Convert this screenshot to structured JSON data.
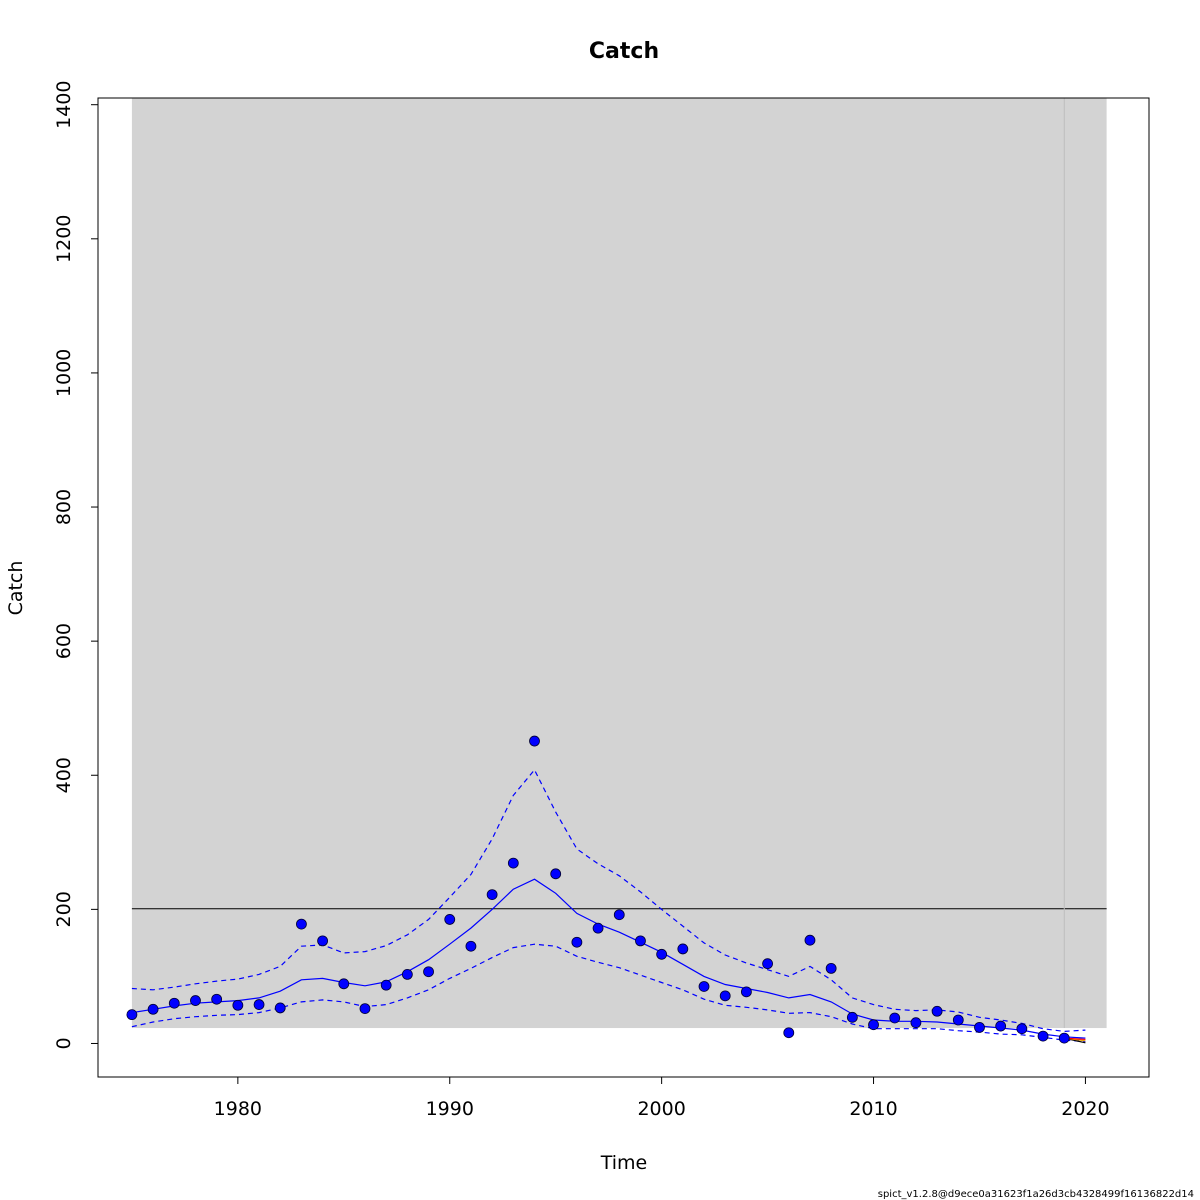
{
  "chart_data": {
    "type": "scatter",
    "title": "Catch",
    "xlabel": "Time",
    "ylabel": "Catch",
    "footnote": "spict_v1.2.8@d9ece0a31623f1a26d3cb4328499f16136822d14",
    "xlim": [
      1973.4,
      2023.0
    ],
    "ylim": [
      -50,
      1410
    ],
    "xticks": [
      1980,
      1990,
      2000,
      2010,
      2020
    ],
    "yticks": [
      0,
      200,
      400,
      600,
      800,
      1000,
      1200,
      1400
    ],
    "msy_region": {
      "x": [
        1975,
        2021
      ],
      "y": [
        23,
        1410
      ]
    },
    "msy_line": 201,
    "vertical_line": 2019,
    "colors": {
      "points": "#0000ff",
      "fit": "#0000ff",
      "ci": "#0000ff",
      "region": "#d3d3d3",
      "hline": "#000000",
      "vline": "#bdbdbd",
      "forecast": [
        "#000000",
        "#e69f00",
        "#ff0000"
      ]
    },
    "series": [
      {
        "type": "scatter",
        "x": [
          1975,
          1976,
          1977,
          1978,
          1979,
          1980,
          1981,
          1982,
          1983,
          1984,
          1985,
          1986,
          1987,
          1988,
          1989,
          1990,
          1991,
          1992,
          1993,
          1994,
          1995,
          1996,
          1997,
          1998,
          1999,
          2000,
          2001,
          2002,
          2003,
          2004,
          2005,
          2006,
          2007,
          2008,
          2009,
          2010,
          2011,
          2012,
          2013,
          2014,
          2015,
          2016,
          2017,
          2018,
          2019
        ],
        "values": [
          43,
          51,
          60,
          64,
          66,
          57,
          58,
          53,
          178,
          153,
          89,
          52,
          87,
          103,
          107,
          185,
          145,
          222,
          269,
          451,
          253,
          151,
          172,
          192,
          153,
          133,
          141,
          85,
          71,
          77,
          119,
          16,
          154,
          112,
          39,
          28,
          38,
          31,
          48,
          35,
          24,
          26,
          22,
          11,
          8
        ]
      },
      {
        "type": "line",
        "x": [
          1975,
          1976,
          1977,
          1978,
          1979,
          1980,
          1981,
          1982,
          1983,
          1984,
          1985,
          1986,
          1987,
          1988,
          1989,
          1990,
          1991,
          1992,
          1993,
          1994,
          1995,
          1996,
          1997,
          1998,
          1999,
          2000,
          2001,
          2002,
          2003,
          2004,
          2005,
          2006,
          2007,
          2008,
          2009,
          2010,
          2011,
          2012,
          2013,
          2014,
          2015,
          2016,
          2017,
          2018,
          2019,
          2020
        ],
        "values": [
          46,
          51,
          56,
          60,
          62,
          64,
          68,
          78,
          95,
          97,
          91,
          86,
          92,
          107,
          125,
          148,
          172,
          200,
          230,
          245,
          224,
          194,
          178,
          166,
          151,
          136,
          118,
          100,
          88,
          82,
          76,
          68,
          73,
          62,
          44,
          35,
          33,
          33,
          32,
          29,
          26,
          23,
          20,
          14,
          10,
          8
        ]
      },
      {
        "type": "line",
        "x": [
          1975,
          1976,
          1977,
          1978,
          1979,
          1980,
          1981,
          1982,
          1983,
          1984,
          1985,
          1986,
          1987,
          1988,
          1989,
          1990,
          1991,
          1992,
          1993,
          1994,
          1995,
          1996,
          1997,
          1998,
          1999,
          2000,
          2001,
          2002,
          2003,
          2004,
          2005,
          2006,
          2007,
          2008,
          2009,
          2010,
          2011,
          2012,
          2013,
          2014,
          2015,
          2016,
          2017,
          2018,
          2019,
          2020
        ],
        "values": [
          82,
          80,
          84,
          89,
          93,
          96,
          103,
          115,
          145,
          147,
          135,
          137,
          146,
          162,
          185,
          218,
          252,
          305,
          370,
          408,
          345,
          290,
          268,
          250,
          226,
          200,
          175,
          150,
          132,
          120,
          110,
          100,
          115,
          95,
          68,
          58,
          51,
          49,
          50,
          47,
          39,
          35,
          30,
          22,
          18,
          20
        ]
      },
      {
        "type": "line",
        "x": [
          1975,
          1976,
          1977,
          1978,
          1979,
          1980,
          1981,
          1982,
          1983,
          1984,
          1985,
          1986,
          1987,
          1988,
          1989,
          1990,
          1991,
          1992,
          1993,
          1994,
          1995,
          1996,
          1997,
          1998,
          1999,
          2000,
          2001,
          2002,
          2003,
          2004,
          2005,
          2006,
          2007,
          2008,
          2009,
          2010,
          2011,
          2012,
          2013,
          2014,
          2015,
          2016,
          2017,
          2018,
          2019,
          2020
        ],
        "values": [
          25,
          32,
          37,
          40,
          42,
          43,
          46,
          53,
          62,
          65,
          62,
          55,
          58,
          68,
          80,
          97,
          112,
          128,
          143,
          148,
          145,
          130,
          121,
          113,
          102,
          91,
          80,
          66,
          57,
          54,
          50,
          45,
          46,
          40,
          29,
          22,
          22,
          22,
          22,
          19,
          17,
          14,
          13,
          9,
          5,
          3
        ]
      }
    ],
    "forecast_x": [
      2019,
      2020
    ],
    "forecast_values": [
      [
        8,
        1
      ],
      [
        8,
        4
      ],
      [
        8,
        6
      ]
    ]
  }
}
